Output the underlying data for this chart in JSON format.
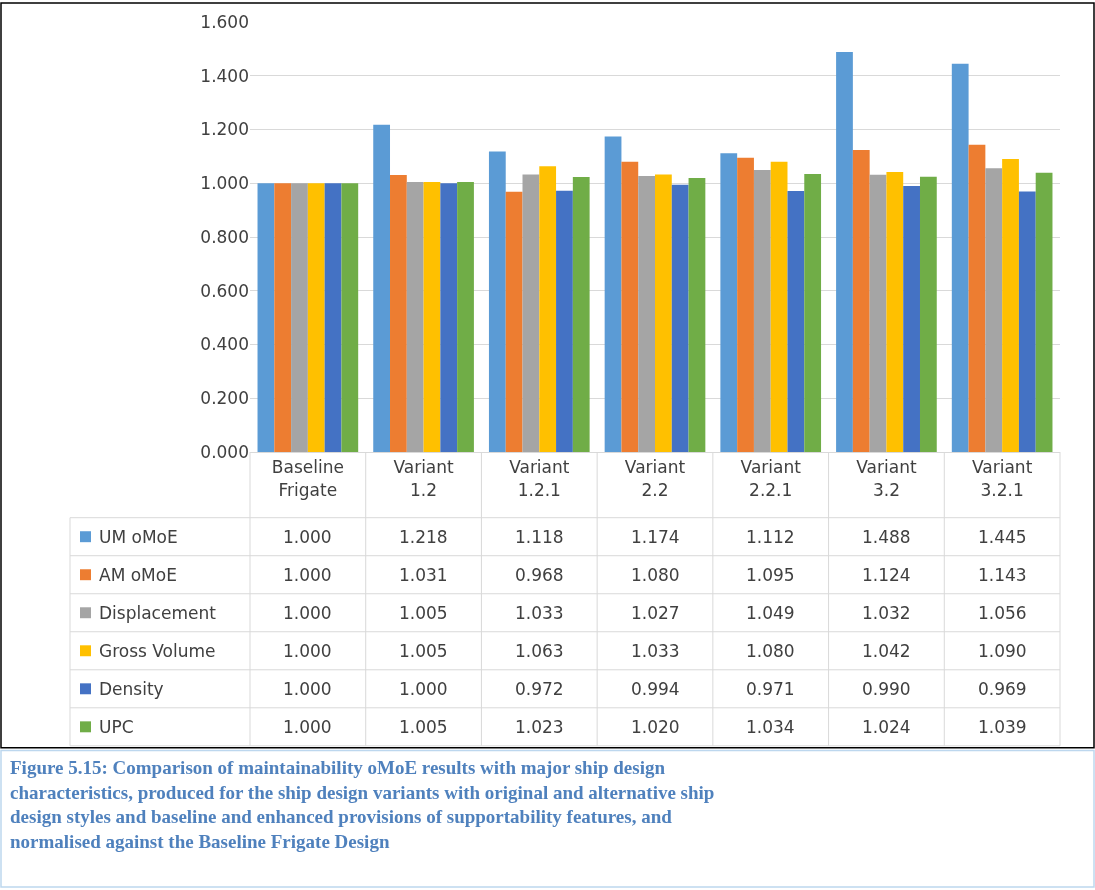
{
  "chart_data": {
    "type": "bar",
    "categories": [
      "Baseline Frigate",
      "Variant 1.2",
      "Variant 1.2.1",
      "Variant 2.2",
      "Variant 2.2.1",
      "Variant 3.2",
      "Variant 3.2.1"
    ],
    "series": [
      {
        "name": "UM oMoE",
        "color": "#5b9bd5",
        "values": [
          1.0,
          1.218,
          1.118,
          1.174,
          1.112,
          1.488,
          1.445
        ],
        "value_labels": [
          "1.000",
          "1.218",
          "1.118",
          "1.174",
          "1.112",
          "1.488",
          "1.445"
        ]
      },
      {
        "name": "AM oMoE",
        "color": "#ed7d31",
        "values": [
          1.0,
          1.031,
          0.968,
          1.08,
          1.095,
          1.124,
          1.143
        ],
        "value_labels": [
          "1.000",
          "1.031",
          "0.968",
          "1.080",
          "1.095",
          "1.124",
          "1.143"
        ]
      },
      {
        "name": "Displacement",
        "color": "#a5a5a5",
        "values": [
          1.0,
          1.005,
          1.033,
          1.027,
          1.049,
          1.032,
          1.056
        ],
        "value_labels": [
          "1.000",
          "1.005",
          "1.033",
          "1.027",
          "1.049",
          "1.032",
          "1.056"
        ]
      },
      {
        "name": "Gross Volume",
        "color": "#ffc000",
        "values": [
          1.0,
          1.005,
          1.063,
          1.033,
          1.08,
          1.042,
          1.09
        ],
        "value_labels": [
          "1.000",
          "1.005",
          "1.063",
          "1.033",
          "1.080",
          "1.042",
          "1.090"
        ]
      },
      {
        "name": "Density",
        "color": "#4472c4",
        "values": [
          1.0,
          1.0,
          0.972,
          0.994,
          0.971,
          0.99,
          0.969
        ],
        "value_labels": [
          "1.000",
          "1.000",
          "0.972",
          "0.994",
          "0.971",
          "0.990",
          "0.969"
        ]
      },
      {
        "name": "UPC",
        "color": "#70ad47",
        "values": [
          1.0,
          1.005,
          1.023,
          1.02,
          1.034,
          1.024,
          1.039
        ],
        "value_labels": [
          "1.000",
          "1.005",
          "1.023",
          "1.020",
          "1.034",
          "1.024",
          "1.039"
        ]
      }
    ],
    "ylim": [
      0,
      1.6
    ],
    "yticks": [
      {
        "value": 0,
        "label": "0.000"
      },
      {
        "value": 0.2,
        "label": "0.200"
      },
      {
        "value": 0.4,
        "label": "0.400"
      },
      {
        "value": 0.6,
        "label": "0.600"
      },
      {
        "value": 0.8,
        "label": "0.800"
      },
      {
        "value": 1.0,
        "label": "1.000"
      },
      {
        "value": 1.2,
        "label": "1.200"
      },
      {
        "value": 1.4,
        "label": "1.400"
      },
      {
        "value": 1.6,
        "label": "1.600"
      }
    ],
    "grid": "y",
    "legend": "bottom",
    "annotations": [
      "Figure 5.15: Comparison of maintainability oMoE results with major ship design characteristics, produced for the ship design variants with original and alternative ship design styles and baseline and enhanced provisions of supportability features, and normalised against the Baseline Frigate Design"
    ]
  }
}
